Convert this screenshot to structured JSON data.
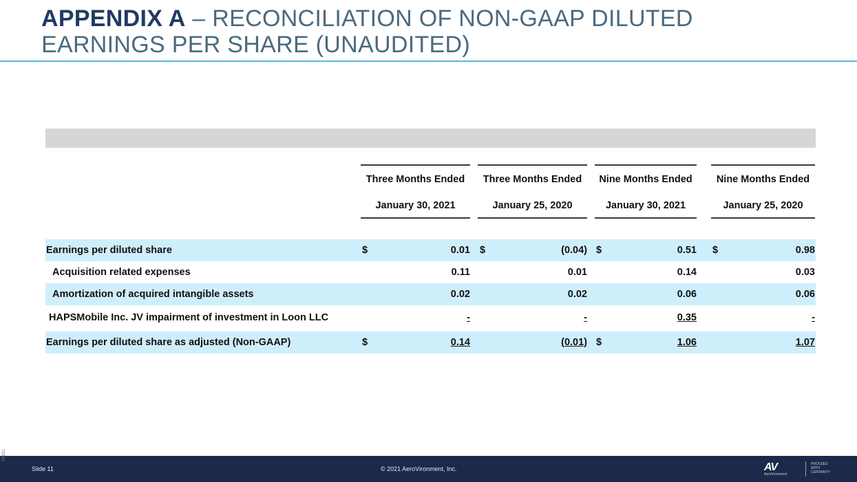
{
  "title": {
    "bold": "APPENDIX A",
    "rest_line1": " – RECONCILIATION OF NON-GAAP DILUTED",
    "line2": "EARNINGS PER SHARE (UNAUDITED)"
  },
  "columns": [
    {
      "line1": "Three Months Ended",
      "line2": "January 30, 2021"
    },
    {
      "line1": "Three Months Ended",
      "line2": "January 25, 2020"
    },
    {
      "line1": "Nine Months Ended",
      "line2": "January 30, 2021"
    },
    {
      "line1": "Nine Months Ended",
      "line2": "January 25, 2020"
    }
  ],
  "rows": [
    {
      "label": "Earnings per diluted share",
      "dollar": "$",
      "values": [
        "0.01",
        "(0.04)",
        "0.51",
        "0.98"
      ]
    },
    {
      "label": "Acquisition related expenses",
      "values": [
        "0.11",
        "0.01",
        "0.14",
        "0.03"
      ]
    },
    {
      "label": "Amortization of acquired intangible assets",
      "values": [
        "0.02",
        "0.02",
        "0.06",
        "0.06"
      ]
    },
    {
      "label": "HAPSMobile Inc. JV impairment of investment in Loon LLC",
      "values": [
        "-",
        "-",
        "0.35",
        "-"
      ]
    },
    {
      "label": "Earnings per diluted share as adjusted (Non-GAAP)",
      "dollar": "$",
      "values": [
        "0.14",
        "(0.01)",
        "1.06",
        "1.07"
      ]
    }
  ],
  "footer": {
    "slide": "Slide 11",
    "copyright": "© 2021 AeroVironment, Inc.",
    "side_text": "©2021",
    "logo_mark": "AV",
    "logo_sub": "AeroVironment",
    "tagline": [
      "PROCEED",
      "WITH",
      "CERTAINTY"
    ]
  }
}
